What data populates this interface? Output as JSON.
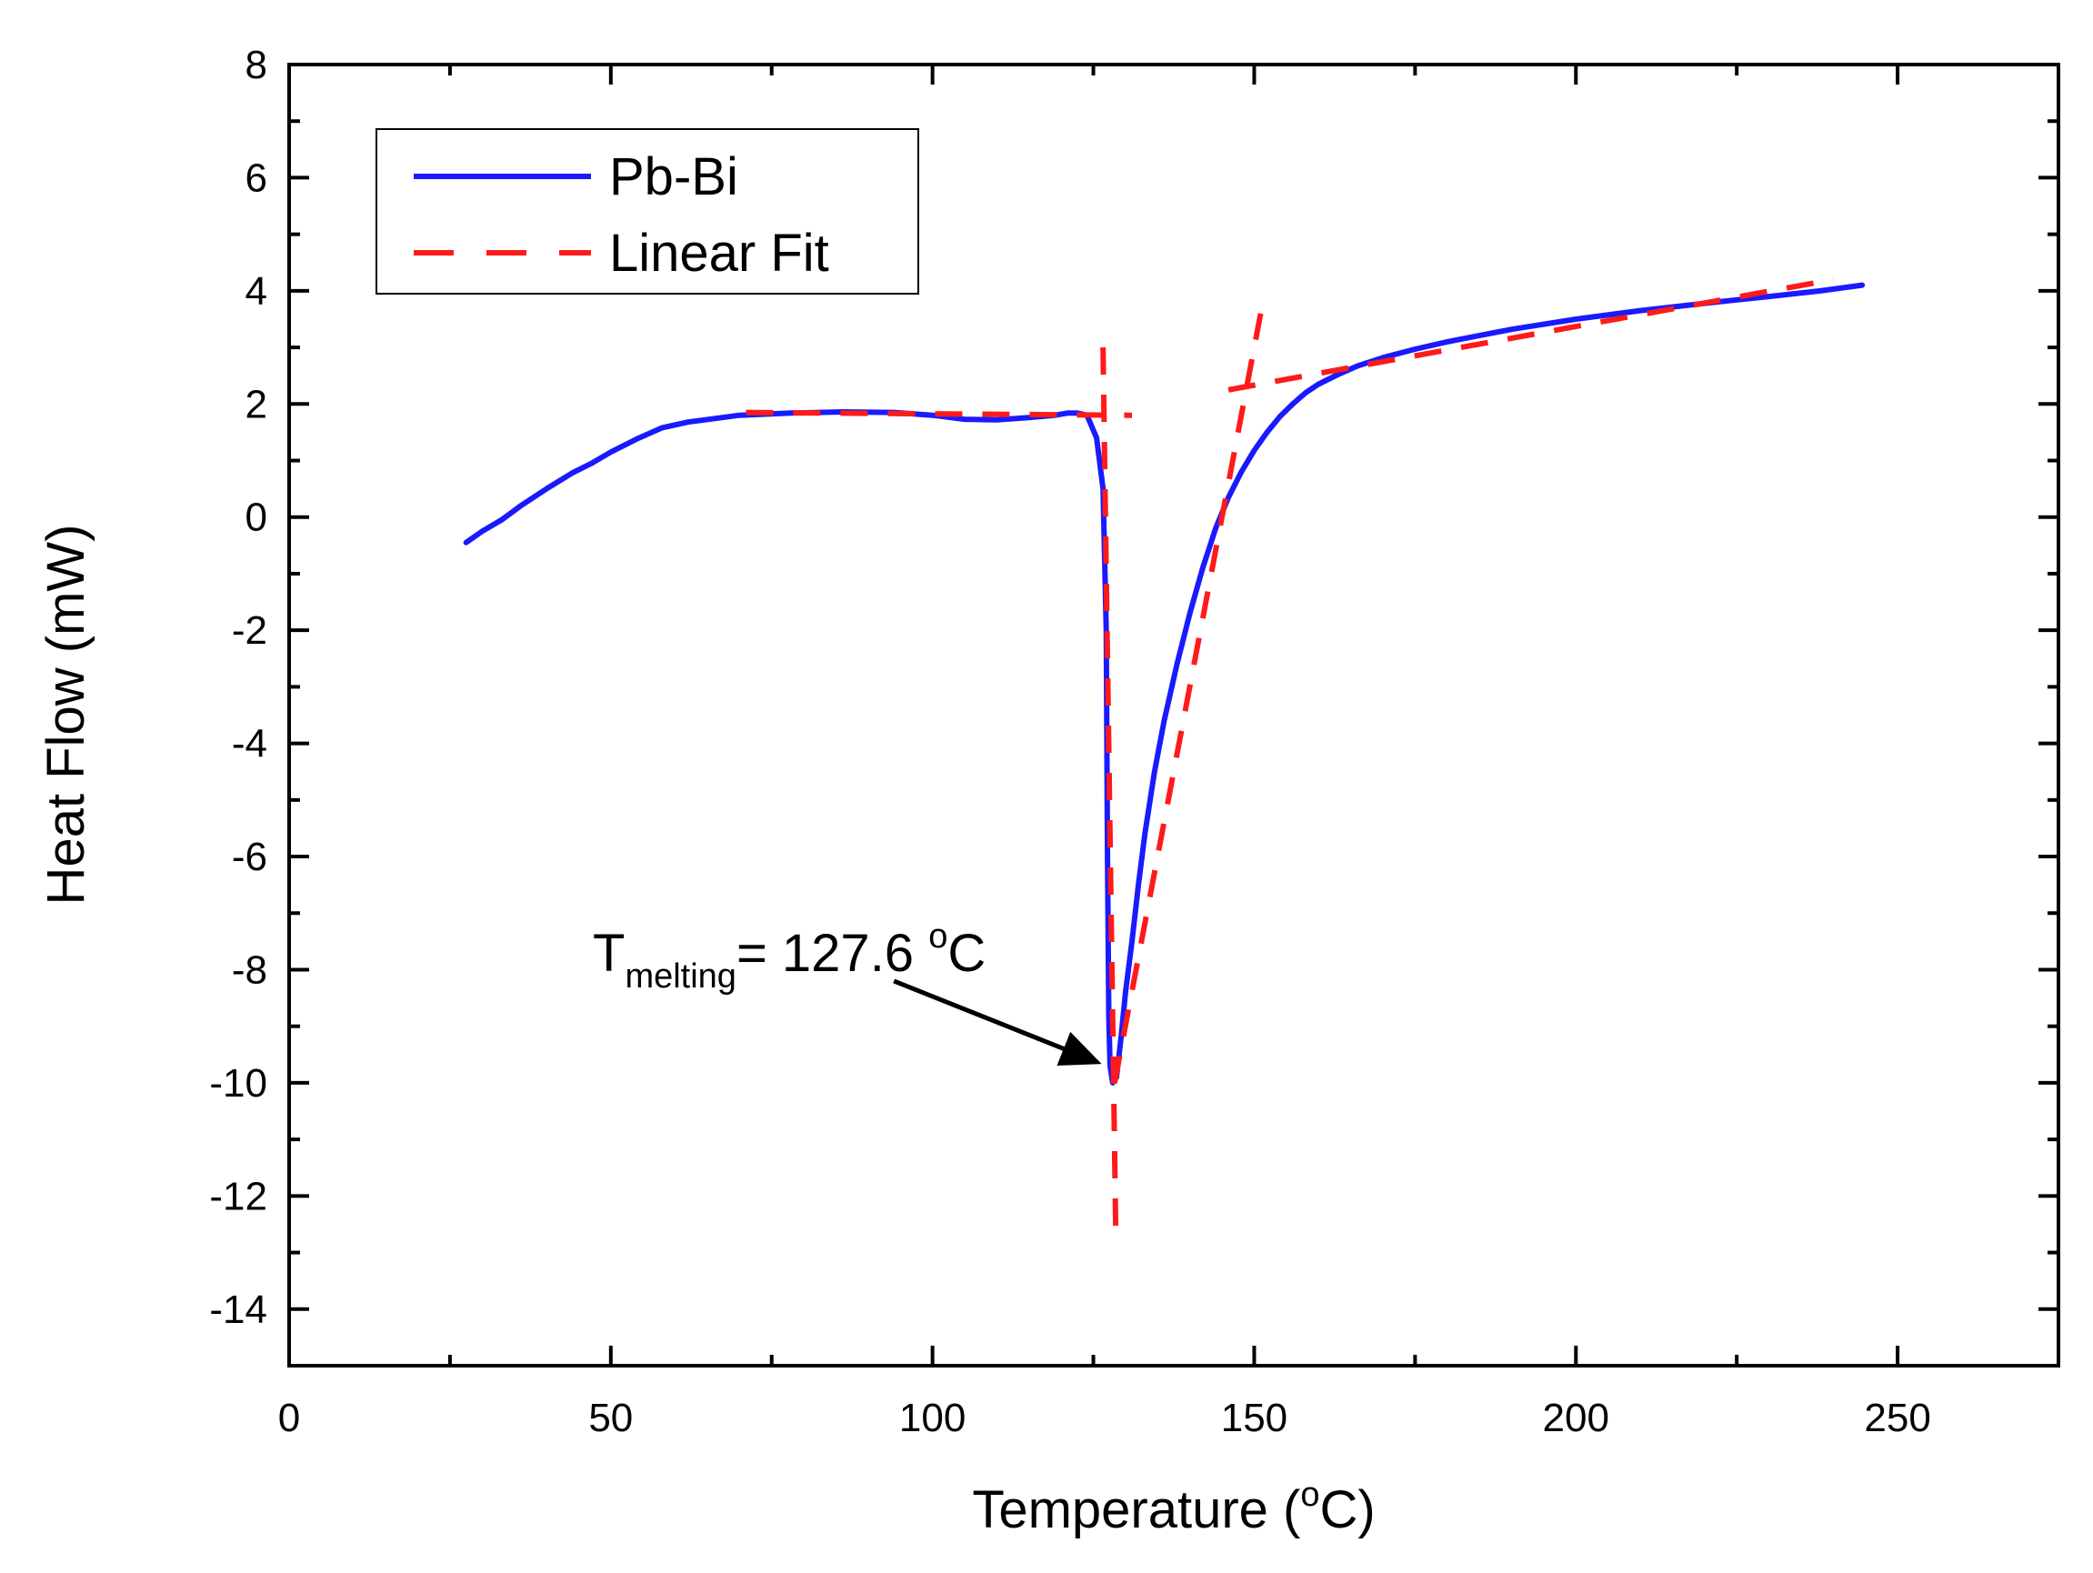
{
  "chart_data": {
    "type": "line",
    "title": "",
    "xlabel": "Temperature (",
    "xlabel_degree": "o",
    "xlabel_unit": "C)",
    "ylabel": "Heat Flow (mW)",
    "xlim": [
      0,
      275
    ],
    "ylim": [
      -15,
      8
    ],
    "x_ticks": [
      0,
      50,
      100,
      150,
      200,
      250
    ],
    "y_ticks": [
      8,
      6,
      4,
      2,
      0,
      -2,
      -4,
      -6,
      -8,
      -10,
      -12,
      -14
    ],
    "x_tick_labels": [
      "0",
      "50",
      "100",
      "150",
      "200",
      "250"
    ],
    "y_tick_labels": [
      "8",
      "6",
      "4",
      "2",
      "0",
      "-2",
      "-4",
      "-6",
      "-8",
      "-10",
      "-12",
      "-14"
    ],
    "x_minor_step": 25,
    "y_minor_step": 1,
    "grid": false,
    "legend_position": "top-left",
    "series": [
      {
        "name": "Pb-Bi",
        "color": "#1a1aff",
        "style": "solid",
        "x": [
          27.5,
          30,
          33,
          36,
          40,
          44,
          47,
          50,
          54,
          58,
          62,
          70,
          78,
          86,
          94,
          100,
          105,
          110,
          115,
          119,
          121,
          122.5,
          124,
          125.5,
          126.5,
          127,
          127.2,
          127.4,
          127.6,
          128.0,
          128.6,
          129.3,
          130,
          131,
          132,
          133,
          134.5,
          136,
          138,
          140,
          142,
          144,
          146,
          148,
          150,
          152,
          154,
          156,
          158,
          160,
          163,
          166,
          170,
          175,
          180,
          190,
          200,
          210,
          220,
          230,
          238,
          244.5
        ],
        "y": [
          -0.45,
          -0.25,
          -0.05,
          0.2,
          0.5,
          0.78,
          0.95,
          1.15,
          1.38,
          1.58,
          1.68,
          1.8,
          1.84,
          1.86,
          1.85,
          1.8,
          1.73,
          1.72,
          1.76,
          1.8,
          1.84,
          1.84,
          1.8,
          1.4,
          0.5,
          -2.0,
          -6.0,
          -8.8,
          -9.7,
          -10.0,
          -9.9,
          -9.2,
          -8.4,
          -7.5,
          -6.5,
          -5.6,
          -4.5,
          -3.6,
          -2.6,
          -1.7,
          -0.9,
          -0.2,
          0.35,
          0.8,
          1.18,
          1.5,
          1.78,
          2.0,
          2.2,
          2.35,
          2.52,
          2.67,
          2.82,
          2.97,
          3.1,
          3.32,
          3.5,
          3.65,
          3.78,
          3.9,
          4.0,
          4.1
        ]
      },
      {
        "name": "Linear Fit",
        "color": "#ff1a1a",
        "style": "dashed",
        "segments": [
          {
            "x": [
              71,
              131
            ],
            "y": [
              1.85,
              1.8
            ]
          },
          {
            "x": [
              126.5,
              128.5
            ],
            "y": [
              3.0,
              -12.8
            ]
          },
          {
            "x": [
              128.3,
              151
            ],
            "y": [
              -10.0,
              3.6
            ]
          },
          {
            "x": [
              146,
              240
            ],
            "y": [
              2.25,
              4.2
            ]
          }
        ]
      }
    ],
    "annotations": [
      {
        "text_main": "T",
        "text_sub": "melting",
        "text_rest": "= 127.6 ",
        "text_sup": "o",
        "text_unit": "C",
        "arrow_from": [
          94,
          -8.2
        ],
        "arrow_to": [
          127.6,
          -9.7
        ]
      }
    ]
  }
}
